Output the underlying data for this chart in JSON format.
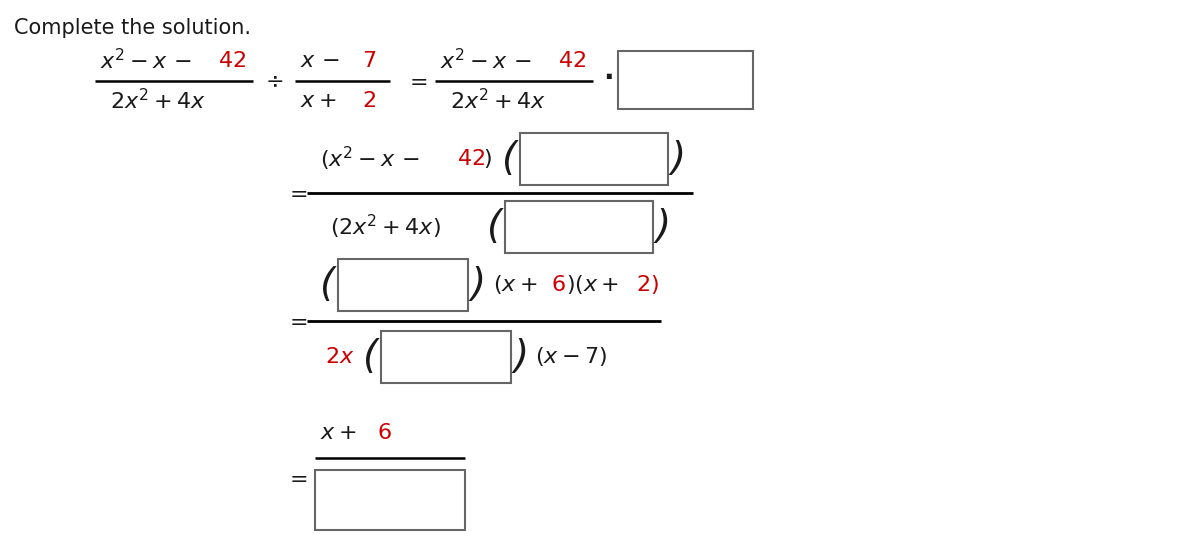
{
  "title": "Complete the solution.",
  "bg_color": "#ffffff",
  "text_color": "#1a1a1a",
  "red_color": "#cc0000",
  "box_edge_color": "#666666",
  "font_size": 15
}
